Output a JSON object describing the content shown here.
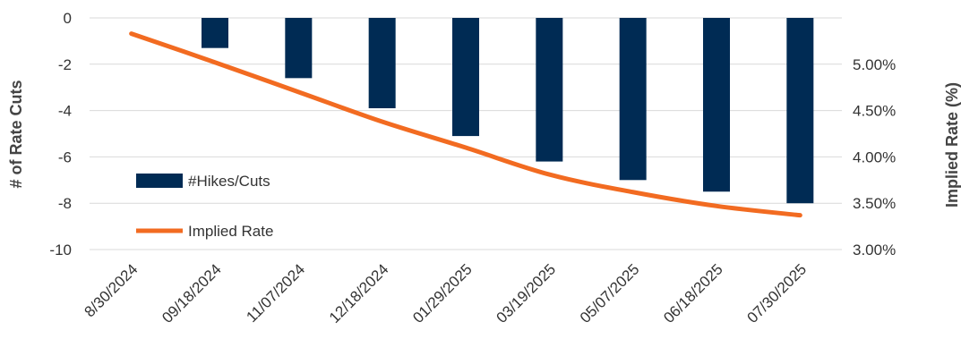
{
  "chart_data": {
    "type": "bar",
    "categories": [
      "8/30/2024",
      "09/18/2024",
      "11/07/2024",
      "12/18/2024",
      "01/29/2025",
      "03/19/2025",
      "05/07/2025",
      "06/18/2025",
      "07/30/2025"
    ],
    "series": [
      {
        "name": "#Hikes/Cuts",
        "type": "bar",
        "axis": "left",
        "color": "#002B54",
        "values": [
          0,
          -1.3,
          -2.6,
          -3.9,
          -5.1,
          -6.2,
          -7.0,
          -7.5,
          -8.0
        ]
      },
      {
        "name": "Implied Rate",
        "type": "line",
        "axis": "right",
        "color": "#F26B21",
        "values": [
          5.33,
          5.02,
          4.7,
          4.38,
          4.1,
          3.81,
          3.62,
          3.47,
          3.37
        ]
      }
    ],
    "yleft": {
      "label": "# of Rate Cuts",
      "ylim": [
        -10,
        0
      ],
      "ticks": [
        0,
        -2,
        -4,
        -6,
        -8,
        -10
      ],
      "tick_labels": [
        "0",
        "-2",
        "-4",
        "-6",
        "-8",
        "-10"
      ]
    },
    "yright": {
      "label": "Implied Rate (%)",
      "ylim": [
        3.0,
        5.5
      ],
      "ticks": [
        5.0,
        4.5,
        4.0,
        3.5,
        3.0
      ],
      "tick_labels": [
        "5.00%",
        "4.50%",
        "4.00%",
        "3.50%",
        "3.00%"
      ]
    },
    "grid": true,
    "legend": "bottom-left"
  }
}
